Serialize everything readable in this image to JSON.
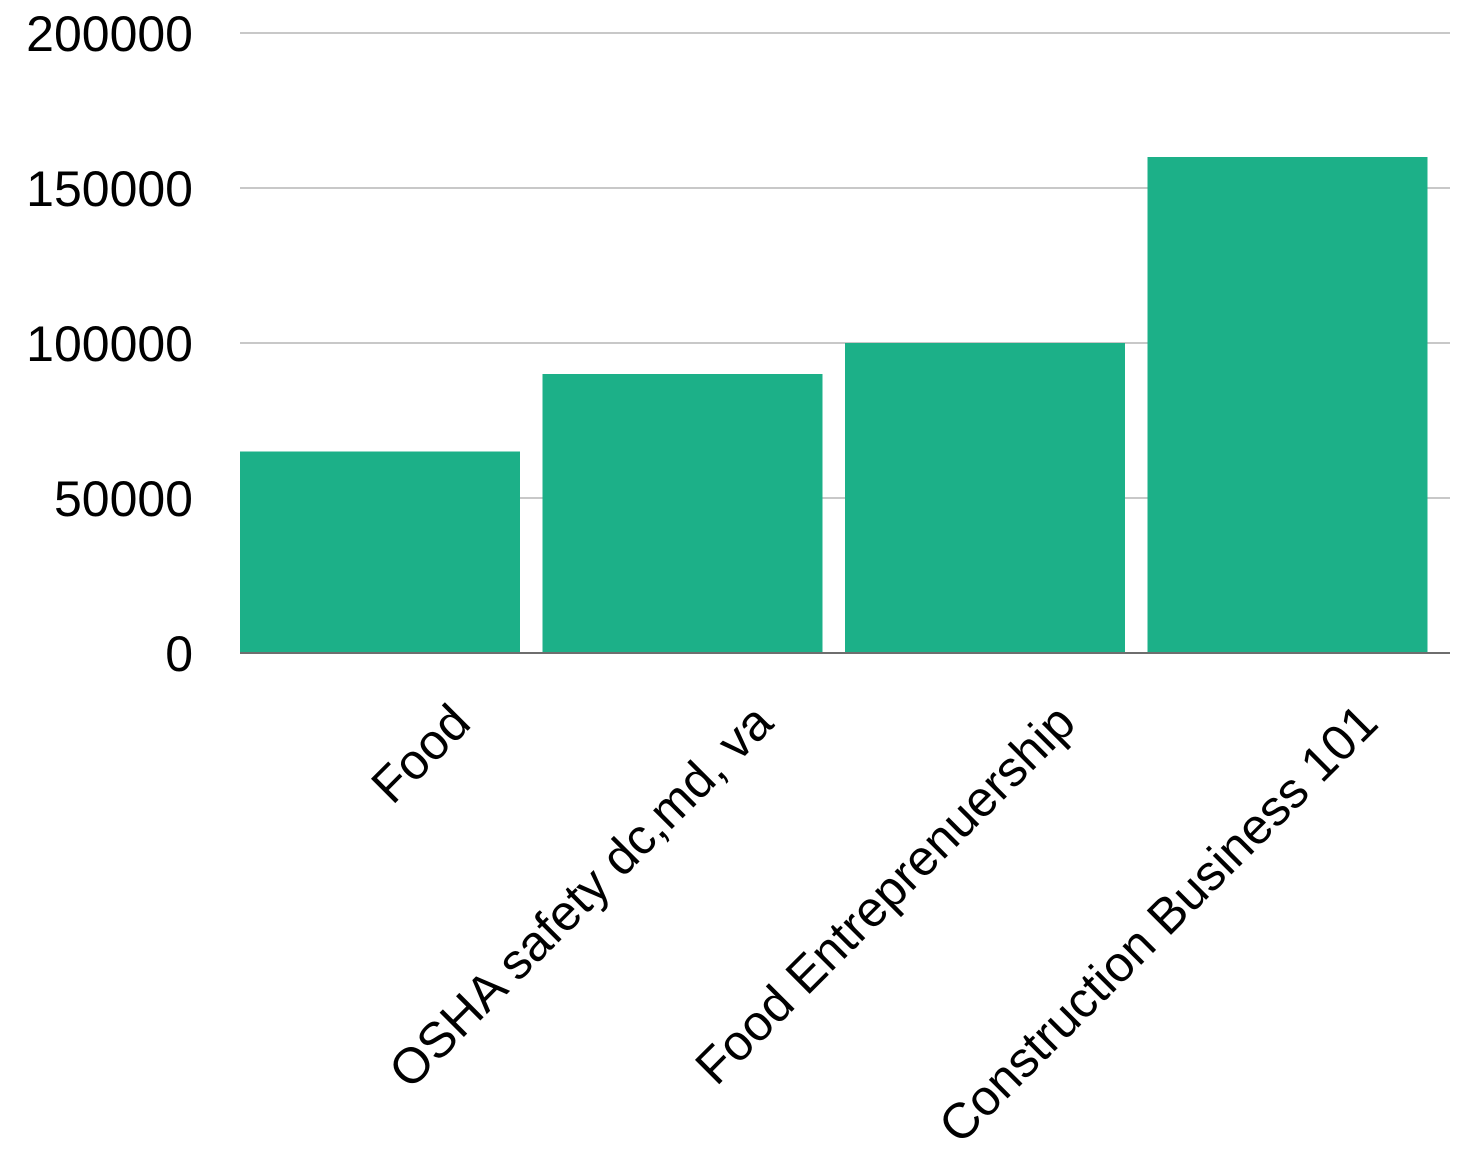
{
  "chart_data": {
    "type": "bar",
    "title": "",
    "xlabel": "",
    "ylabel": "",
    "categories": [
      "Food",
      "OSHA safety dc,md, va",
      "Food Entreprenuership",
      "Construction Business 101"
    ],
    "values": [
      65000,
      90000,
      100000,
      160000
    ],
    "ylim": [
      0,
      200000
    ],
    "yticks": [
      0,
      50000,
      100000,
      150000,
      200000
    ],
    "ytick_labels": [
      "0",
      "50000",
      "100000",
      "150000",
      "200000"
    ],
    "grid": true,
    "legend": "none",
    "bar_color": "#1cb088",
    "grid_color": "#c8c8c8",
    "baseline_color": "#6e6e6e"
  }
}
